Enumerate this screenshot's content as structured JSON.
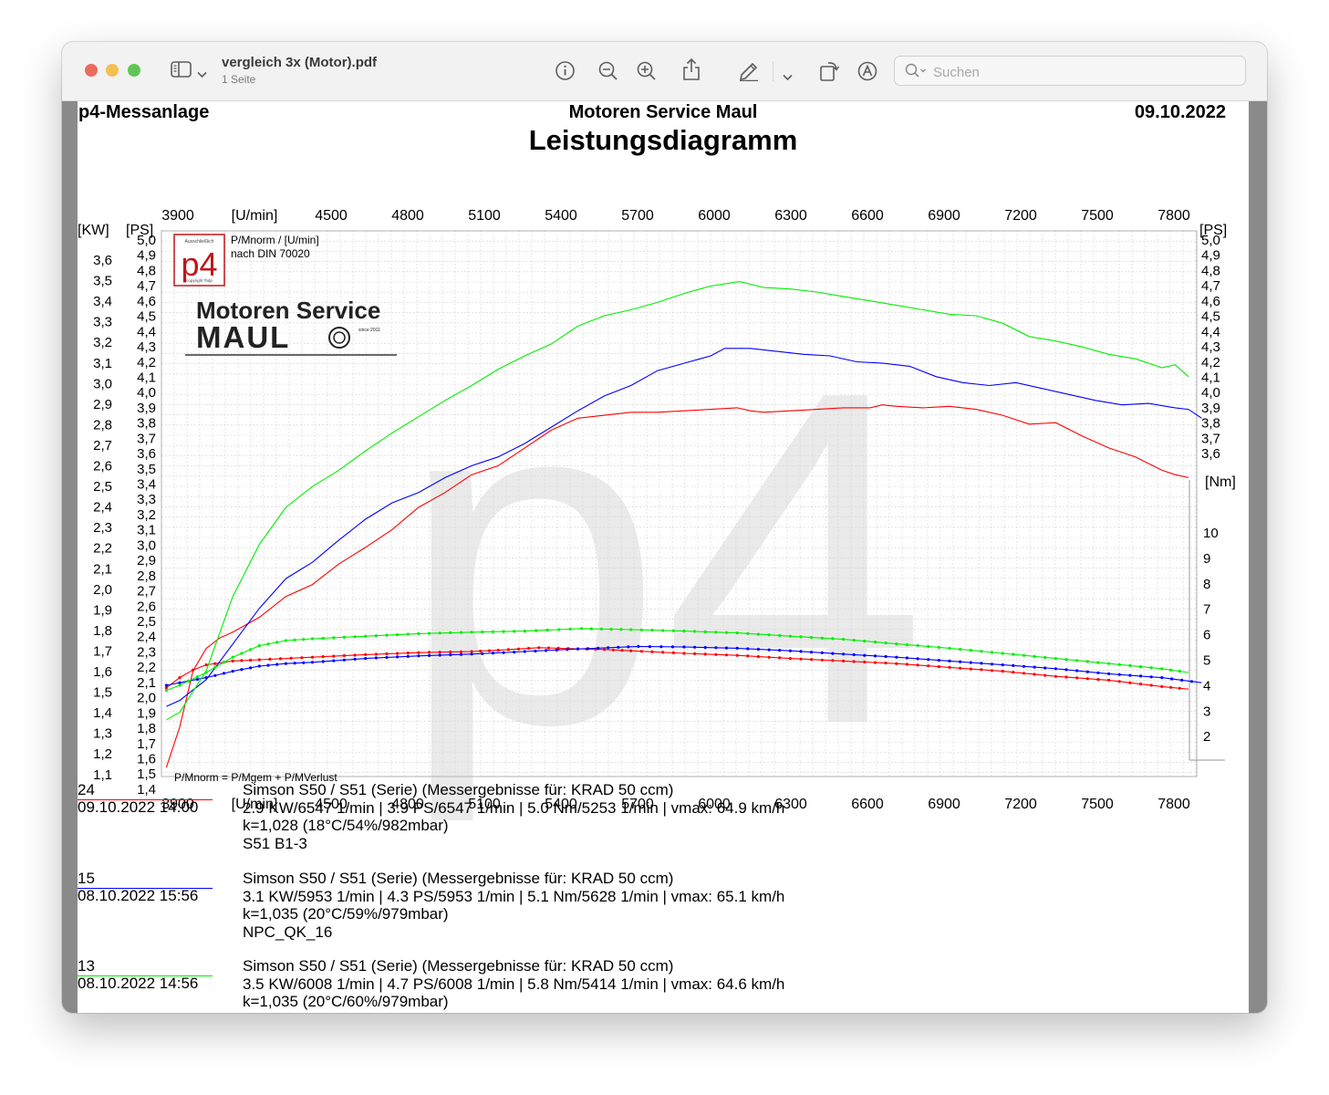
{
  "window": {
    "title": "vergleich 3x (Motor).pdf",
    "subtitle": "1 Seite",
    "search_placeholder": "Suchen",
    "traffic_lights": {
      "close": "#ed6a5e",
      "minimize": "#f5bf4f",
      "zoom": "#61c554"
    },
    "toolbar_icons": [
      "sidebar-icon",
      "chevron-down-icon",
      "info-icon",
      "zoom-out-icon",
      "zoom-in-icon",
      "share-icon",
      "markup-pen-icon",
      "chevron-down-icon",
      "rotate-icon",
      "annotate-icon",
      "search-icon"
    ]
  },
  "document": {
    "header_left": "p4-Messanlage",
    "header_center": "Motoren Service Maul",
    "header_right": "09.10.2022",
    "title": "Leistungsdiagramm",
    "logo": {
      "brand": "p4",
      "small_top": "Ausschließlich",
      "small_bottom": "copyright *bdp",
      "company_line1": "Motoren Service",
      "company_line2": "MAUL",
      "since": "since 2011"
    },
    "note_top_1": "P/Mnorm / [U/min]",
    "note_top_2": "nach DIN 70020",
    "note_bottom": "P/Mnorm = P/Mgem + P/MVerlust",
    "watermark": "p4"
  },
  "chart_data": {
    "type": "line",
    "x_unit": "[U/min]",
    "x_ticks": [
      3900,
      4500,
      4800,
      5100,
      5400,
      5700,
      6000,
      6300,
      6600,
      6900,
      7200,
      7500,
      7800
    ],
    "xlim": [
      3900,
      7800
    ],
    "left_kw": {
      "label": "[KW]",
      "ticks": [
        "3,6",
        "3,5",
        "3,4",
        "3,3",
        "3,2",
        "3,1",
        "3,0",
        "2,9",
        "2,8",
        "2,7",
        "2,6",
        "2,5",
        "2,4",
        "2,3",
        "2,2",
        "2,1",
        "2,0",
        "1,9",
        "1,8",
        "1,7",
        "1,6",
        "1,5",
        "1,4",
        "1,3",
        "1,2",
        "1,1"
      ]
    },
    "left_ps": {
      "label": "[PS]",
      "ticks": [
        "5,0",
        "4,9",
        "4,8",
        "4,7",
        "4,6",
        "4,5",
        "4,4",
        "4,3",
        "4,2",
        "4,1",
        "4,0",
        "3,9",
        "3,8",
        "3,7",
        "3,6",
        "3,5",
        "3,4",
        "3,3",
        "3,2",
        "3,1",
        "3,0",
        "2,9",
        "2,8",
        "2,7",
        "2,6",
        "2,5",
        "2,4",
        "2,3",
        "2,2",
        "2,1",
        "2,0",
        "1,9",
        "1,8",
        "1,7",
        "1,6",
        "1,5",
        "1,4"
      ],
      "ylim": [
        1.4,
        5.0
      ]
    },
    "right_ps": {
      "label": "[PS]",
      "ticks": [
        "5,0",
        "4,9",
        "4,8",
        "4,7",
        "4,6",
        "4,5",
        "4,4",
        "4,3",
        "4,2",
        "4,1",
        "4,0",
        "3,9",
        "3,8",
        "3,7",
        "3,6"
      ]
    },
    "right_nm": {
      "label": "[Nm]",
      "ticks": [
        "10",
        "9",
        "8",
        "7",
        "6",
        "5",
        "4",
        "3",
        "2"
      ],
      "ylim": [
        0.8,
        11.2
      ]
    },
    "series": [
      {
        "name": "24",
        "color": "#ff0000",
        "power_ps": [
          [
            3850,
            1.45
          ],
          [
            3900,
            1.72
          ],
          [
            3950,
            2.1
          ],
          [
            4000,
            2.25
          ],
          [
            4050,
            2.32
          ],
          [
            4100,
            2.36
          ],
          [
            4200,
            2.46
          ],
          [
            4300,
            2.6
          ],
          [
            4400,
            2.68
          ],
          [
            4500,
            2.82
          ],
          [
            4600,
            2.93
          ],
          [
            4700,
            3.05
          ],
          [
            4800,
            3.2
          ],
          [
            4900,
            3.3
          ],
          [
            5000,
            3.42
          ],
          [
            5100,
            3.48
          ],
          [
            5200,
            3.6
          ],
          [
            5300,
            3.72
          ],
          [
            5400,
            3.8
          ],
          [
            5500,
            3.82
          ],
          [
            5600,
            3.84
          ],
          [
            5700,
            3.84
          ],
          [
            5800,
            3.85
          ],
          [
            5900,
            3.86
          ],
          [
            6000,
            3.87
          ],
          [
            6050,
            3.85
          ],
          [
            6100,
            3.84
          ],
          [
            6200,
            3.85
          ],
          [
            6300,
            3.86
          ],
          [
            6400,
            3.87
          ],
          [
            6500,
            3.87
          ],
          [
            6547,
            3.89
          ],
          [
            6600,
            3.88
          ],
          [
            6700,
            3.87
          ],
          [
            6800,
            3.88
          ],
          [
            6900,
            3.86
          ],
          [
            7000,
            3.82
          ],
          [
            7100,
            3.76
          ],
          [
            7200,
            3.77
          ],
          [
            7300,
            3.68
          ],
          [
            7400,
            3.6
          ],
          [
            7500,
            3.54
          ],
          [
            7600,
            3.45
          ],
          [
            7650,
            3.42
          ],
          [
            7700,
            3.4
          ]
        ],
        "torque_nm": [
          [
            3850,
            3.4
          ],
          [
            3900,
            3.8
          ],
          [
            3950,
            4.1
          ],
          [
            4000,
            4.3
          ],
          [
            4100,
            4.45
          ],
          [
            4200,
            4.5
          ],
          [
            4400,
            4.6
          ],
          [
            4600,
            4.7
          ],
          [
            4800,
            4.78
          ],
          [
            5000,
            4.82
          ],
          [
            5100,
            4.87
          ],
          [
            5253,
            4.97
          ],
          [
            5400,
            4.93
          ],
          [
            5500,
            4.9
          ],
          [
            5600,
            4.85
          ],
          [
            5800,
            4.75
          ],
          [
            6000,
            4.67
          ],
          [
            6200,
            4.55
          ],
          [
            6400,
            4.45
          ],
          [
            6600,
            4.35
          ],
          [
            6800,
            4.2
          ],
          [
            7000,
            4.05
          ],
          [
            7200,
            3.85
          ],
          [
            7400,
            3.7
          ],
          [
            7600,
            3.45
          ],
          [
            7700,
            3.35
          ]
        ]
      },
      {
        "name": "15",
        "color": "#0000ff",
        "power_ps": [
          [
            3850,
            1.86
          ],
          [
            3900,
            1.9
          ],
          [
            4000,
            2.04
          ],
          [
            4100,
            2.28
          ],
          [
            4200,
            2.52
          ],
          [
            4300,
            2.72
          ],
          [
            4400,
            2.83
          ],
          [
            4500,
            2.98
          ],
          [
            4600,
            3.12
          ],
          [
            4700,
            3.23
          ],
          [
            4800,
            3.3
          ],
          [
            4900,
            3.4
          ],
          [
            5000,
            3.48
          ],
          [
            5100,
            3.54
          ],
          [
            5200,
            3.63
          ],
          [
            5300,
            3.74
          ],
          [
            5400,
            3.85
          ],
          [
            5500,
            3.95
          ],
          [
            5600,
            4.02
          ],
          [
            5700,
            4.12
          ],
          [
            5800,
            4.17
          ],
          [
            5900,
            4.22
          ],
          [
            5953,
            4.27
          ],
          [
            6050,
            4.27
          ],
          [
            6150,
            4.25
          ],
          [
            6250,
            4.23
          ],
          [
            6350,
            4.22
          ],
          [
            6450,
            4.18
          ],
          [
            6550,
            4.17
          ],
          [
            6650,
            4.15
          ],
          [
            6750,
            4.08
          ],
          [
            6850,
            4.04
          ],
          [
            6950,
            4.02
          ],
          [
            7050,
            4.04
          ],
          [
            7150,
            4.0
          ],
          [
            7250,
            3.96
          ],
          [
            7350,
            3.92
          ],
          [
            7450,
            3.89
          ],
          [
            7550,
            3.9
          ],
          [
            7650,
            3.87
          ],
          [
            7700,
            3.86
          ],
          [
            7750,
            3.8
          ]
        ],
        "torque_nm": [
          [
            3850,
            3.5
          ],
          [
            3900,
            3.6
          ],
          [
            4000,
            3.8
          ],
          [
            4100,
            4.05
          ],
          [
            4200,
            4.25
          ],
          [
            4300,
            4.35
          ],
          [
            4400,
            4.4
          ],
          [
            4600,
            4.55
          ],
          [
            4800,
            4.65
          ],
          [
            5000,
            4.72
          ],
          [
            5200,
            4.82
          ],
          [
            5400,
            4.92
          ],
          [
            5628,
            5.02
          ],
          [
            5800,
            5.0
          ],
          [
            6000,
            4.95
          ],
          [
            6200,
            4.85
          ],
          [
            6400,
            4.72
          ],
          [
            6600,
            4.6
          ],
          [
            6800,
            4.45
          ],
          [
            7000,
            4.3
          ],
          [
            7200,
            4.15
          ],
          [
            7400,
            3.95
          ],
          [
            7600,
            3.8
          ],
          [
            7750,
            3.6
          ]
        ]
      },
      {
        "name": "13",
        "color": "#00ee00",
        "power_ps": [
          [
            3850,
            1.77
          ],
          [
            3900,
            1.82
          ],
          [
            4000,
            2.1
          ],
          [
            4100,
            2.6
          ],
          [
            4200,
            2.95
          ],
          [
            4300,
            3.2
          ],
          [
            4400,
            3.34
          ],
          [
            4500,
            3.45
          ],
          [
            4600,
            3.58
          ],
          [
            4700,
            3.7
          ],
          [
            4800,
            3.81
          ],
          [
            4900,
            3.92
          ],
          [
            5000,
            4.02
          ],
          [
            5100,
            4.13
          ],
          [
            5200,
            4.22
          ],
          [
            5300,
            4.3
          ],
          [
            5400,
            4.42
          ],
          [
            5500,
            4.49
          ],
          [
            5600,
            4.53
          ],
          [
            5700,
            4.58
          ],
          [
            5800,
            4.64
          ],
          [
            5900,
            4.69
          ],
          [
            6008,
            4.72
          ],
          [
            6100,
            4.68
          ],
          [
            6200,
            4.67
          ],
          [
            6300,
            4.65
          ],
          [
            6400,
            4.62
          ],
          [
            6500,
            4.59
          ],
          [
            6600,
            4.56
          ],
          [
            6700,
            4.53
          ],
          [
            6800,
            4.5
          ],
          [
            6900,
            4.49
          ],
          [
            7000,
            4.44
          ],
          [
            7100,
            4.35
          ],
          [
            7200,
            4.32
          ],
          [
            7300,
            4.28
          ],
          [
            7400,
            4.23
          ],
          [
            7500,
            4.2
          ],
          [
            7600,
            4.14
          ],
          [
            7650,
            4.16
          ],
          [
            7700,
            4.08
          ]
        ],
        "torque_nm": [
          [
            3850,
            3.3
          ],
          [
            3900,
            3.5
          ],
          [
            4000,
            4.0
          ],
          [
            4100,
            4.6
          ],
          [
            4200,
            5.05
          ],
          [
            4300,
            5.25
          ],
          [
            4400,
            5.32
          ],
          [
            4600,
            5.42
          ],
          [
            4800,
            5.52
          ],
          [
            5000,
            5.58
          ],
          [
            5200,
            5.62
          ],
          [
            5414,
            5.72
          ],
          [
            5600,
            5.68
          ],
          [
            5800,
            5.62
          ],
          [
            6000,
            5.55
          ],
          [
            6200,
            5.42
          ],
          [
            6400,
            5.3
          ],
          [
            6600,
            5.12
          ],
          [
            6800,
            4.95
          ],
          [
            7000,
            4.75
          ],
          [
            7200,
            4.55
          ],
          [
            7400,
            4.35
          ],
          [
            7600,
            4.15
          ],
          [
            7700,
            4.0
          ]
        ]
      }
    ]
  },
  "legend": [
    {
      "id": "24",
      "date": "09.10.2022  14:00",
      "color": "#ff0000",
      "lines": [
        "Simson S50 / S51 (Serie) (Messergebnisse für: KRAD 50 ccm)",
        "2.9 KW/6547 1/min  |  3.9 PS/6547 1/min  |  5.0 Nm/5253 1/min | vmax: 64.9 km/h",
        "k=1,028 (18°C/54%/982mbar)",
        "S51 B1-3"
      ]
    },
    {
      "id": "15",
      "date": "08.10.2022  15:56",
      "color": "#0000ff",
      "lines": [
        "Simson S50 / S51 (Serie) (Messergebnisse für: KRAD 50 ccm)",
        "3.1 KW/5953 1/min  |  4.3 PS/5953 1/min  |  5.1 Nm/5628 1/min | vmax: 65.1 km/h",
        "k=1,035 (20°C/59%/979mbar)",
        "NPC_QK_16"
      ]
    },
    {
      "id": "13",
      "date": "08.10.2022  14:56",
      "color": "#00ee00",
      "lines": [
        "Simson S50 / S51 (Serie) (Messergebnisse für: KRAD 50 ccm)",
        "3.5 KW/6008 1/min  |  4.7 PS/6008 1/min  |  5.8 Nm/5414 1/min | vmax: 64.6 km/h",
        "k=1,035 (20°C/60%/979mbar)"
      ]
    }
  ]
}
